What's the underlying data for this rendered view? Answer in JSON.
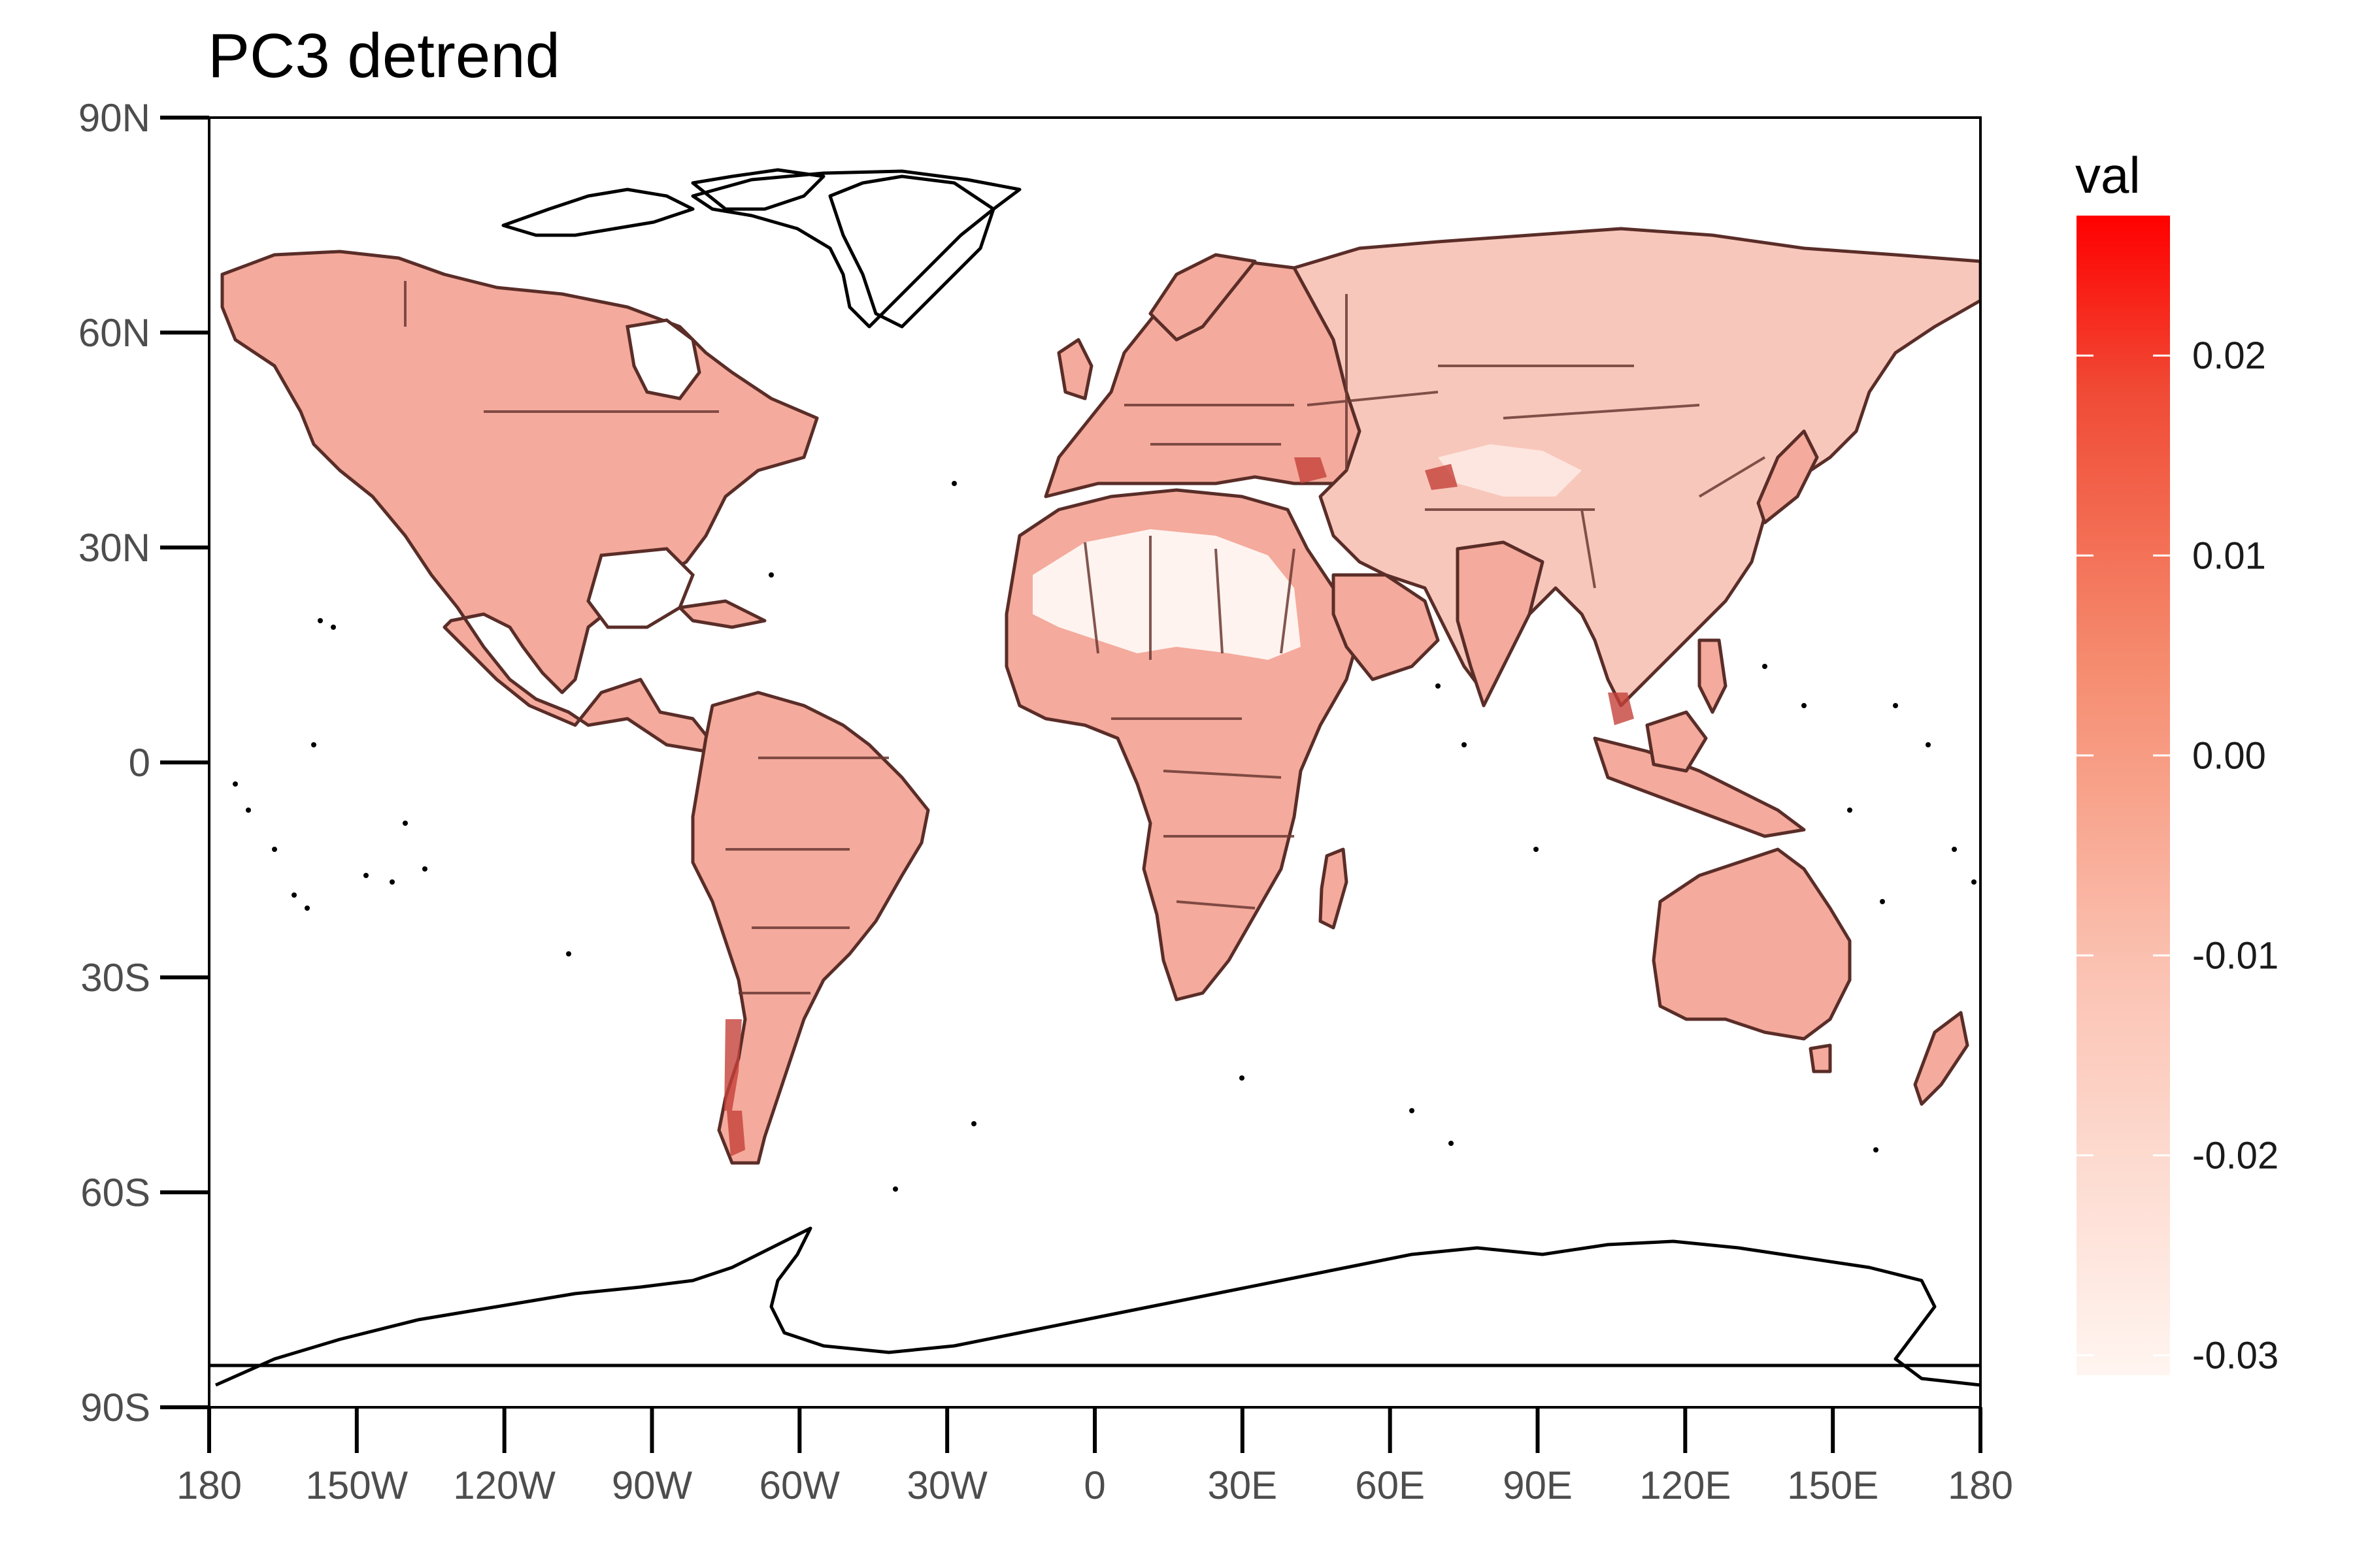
{
  "title": "PC3 detrend",
  "legend": {
    "title": "val",
    "ticks": [
      "0.02",
      "0.01",
      "0.00",
      "-0.01",
      "-0.02",
      "-0.03"
    ],
    "tick_values": [
      0.02,
      0.01,
      0.0,
      -0.01,
      -0.02,
      -0.03
    ],
    "range": [
      -0.031,
      0.027
    ],
    "color_low": "#fff5f0",
    "color_high": "#ff0000"
  },
  "axes": {
    "x_ticks": [
      "180",
      "150W",
      "120W",
      "90W",
      "60W",
      "30W",
      "0",
      "30E",
      "60E",
      "90E",
      "120E",
      "150E",
      "180"
    ],
    "x_values": [
      -180,
      -150,
      -120,
      -90,
      -60,
      -30,
      0,
      30,
      60,
      90,
      120,
      150,
      180
    ],
    "y_ticks": [
      "90N",
      "60N",
      "30N",
      "0",
      "30S",
      "60S",
      "90S"
    ],
    "y_values": [
      90,
      60,
      30,
      0,
      -30,
      -60,
      -90
    ]
  },
  "map": {
    "projection": "equirectangular",
    "extent_lon": [
      -180,
      180
    ],
    "extent_lat": [
      -90,
      90
    ],
    "land_color": "#f4aa9c",
    "coastline_color": "#000000",
    "border_color": "#6b3a34"
  }
}
